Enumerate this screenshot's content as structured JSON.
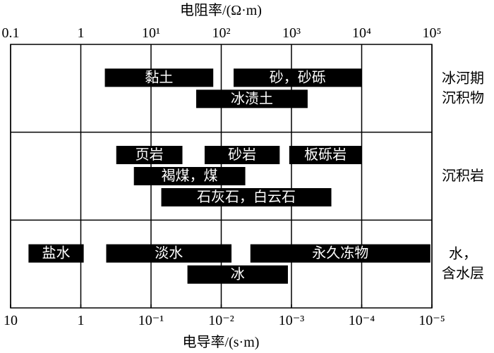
{
  "chart_data": {
    "type": "range_bar",
    "x_label": "电阻率/(Ω·m)",
    "x2_label": "电导率/(s·m)",
    "x_log": true,
    "xlim": [
      0.1,
      100000
    ],
    "xticks": [
      0.1,
      1,
      {
        "value": 10,
        "label": "10¹"
      },
      {
        "value": 100,
        "label": "10²"
      },
      {
        "value": 1000,
        "label": "10³"
      },
      {
        "value": 10000,
        "label": "10⁴"
      },
      {
        "value": 100000,
        "label": "10⁵"
      }
    ],
    "x2lim": [
      10,
      1e-05
    ],
    "x2ticks": [
      10,
      1,
      {
        "value": 0.1,
        "label": "10⁻¹"
      },
      {
        "value": 0.01,
        "label": "10⁻²"
      },
      {
        "value": 0.001,
        "label": "10⁻³"
      },
      {
        "value": 0.0001,
        "label": "10⁻⁴"
      },
      {
        "value": 1e-05,
        "label": "10⁻⁵"
      }
    ],
    "grid": true,
    "color": "#000000",
    "groups": [
      {
        "label": [
          "冰河期",
          "沉积物"
        ],
        "bars": [
          {
            "name": "黏土",
            "low": 2.2,
            "high": 77
          },
          {
            "name": "砂，砂砾",
            "low": 150,
            "high": 10000
          },
          {
            "name": "冰渍土",
            "low": 44,
            "high": 1700
          }
        ]
      },
      {
        "label": [
          "沉积岩"
        ],
        "bars": [
          {
            "name": "页岩",
            "low": 3.2,
            "high": 28
          },
          {
            "name": "砂岩",
            "low": 58,
            "high": 680
          },
          {
            "name": "板砾岩",
            "low": 930,
            "high": 10000
          },
          {
            "name": "褐煤，煤",
            "low": 5.7,
            "high": 220
          },
          {
            "name": "石灰石，白云石",
            "low": 14,
            "high": 3700
          }
        ]
      },
      {
        "label": [
          "水，",
          "含水层"
        ],
        "bars": [
          {
            "name": "盐水",
            "low": 0.18,
            "high": 1.1
          },
          {
            "name": "淡水",
            "low": 2.3,
            "high": 140
          },
          {
            "name": "永久冻物",
            "low": 260,
            "high": 95000
          },
          {
            "name": "冰",
            "low": 33,
            "high": 890
          }
        ]
      }
    ]
  }
}
